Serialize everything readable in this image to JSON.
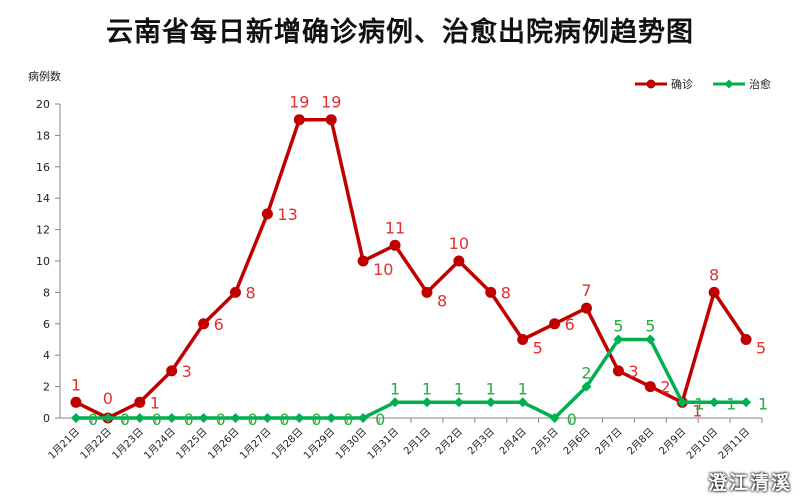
{
  "chart_data": {
    "type": "line",
    "title": "云南省每日新增确诊病例、治愈出院病例趋势图",
    "ylabel": "病例数",
    "xlabel": "",
    "ylim": [
      0,
      20
    ],
    "yticks": [
      0,
      2,
      4,
      6,
      8,
      10,
      12,
      14,
      16,
      18,
      20
    ],
    "grid": false,
    "legend_position": "top-right",
    "categories": [
      "1月21日",
      "1月22日",
      "1月23日",
      "1月24日",
      "1月25日",
      "1月26日",
      "1月27日",
      "1月28日",
      "1月29日",
      "1月30日",
      "1月31日",
      "2月1日",
      "2月2日",
      "2月3日",
      "2月4日",
      "2月5日",
      "2月6日",
      "2月7日",
      "2月8日",
      "2月9日",
      "2月10日",
      "2月11日"
    ],
    "series": [
      {
        "name": "确诊",
        "color": "#c00000",
        "marker": "circle",
        "values": [
          1,
          0,
          1,
          3,
          6,
          8,
          13,
          19,
          19,
          10,
          11,
          8,
          10,
          8,
          5,
          6,
          7,
          3,
          2,
          1,
          8,
          5
        ]
      },
      {
        "name": "治愈",
        "color": "#00b050",
        "marker": "diamond",
        "values": [
          0,
          0,
          0,
          0,
          0,
          0,
          0,
          0,
          0,
          0,
          1,
          1,
          1,
          1,
          1,
          0,
          2,
          5,
          5,
          1,
          1,
          1
        ]
      }
    ]
  },
  "watermark": "澄江清溪"
}
